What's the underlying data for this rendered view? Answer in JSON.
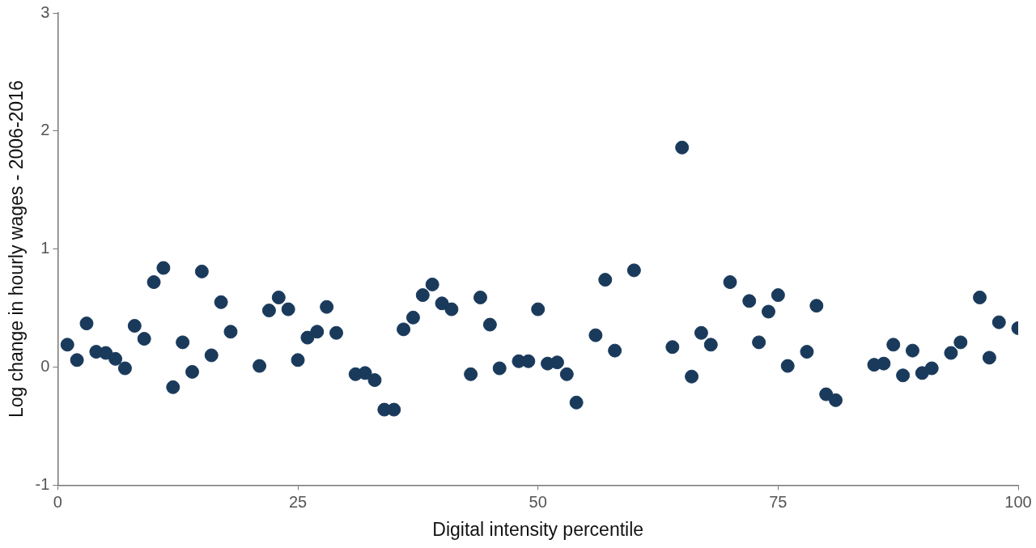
{
  "chart_data": {
    "type": "scatter",
    "xlabel": "Digital intensity percentile",
    "ylabel": "Log change in hourly wages - 2006-2016",
    "x": [
      1,
      2,
      3,
      4,
      5,
      6,
      7,
      8,
      9,
      10,
      11,
      12,
      13,
      14,
      15,
      16,
      17,
      18,
      21,
      22,
      23,
      24,
      25,
      26,
      27,
      28,
      29,
      31,
      32,
      33,
      34,
      35,
      36,
      37,
      38,
      39,
      40,
      41,
      43,
      44,
      45,
      46,
      48,
      49,
      50,
      51,
      52,
      53,
      54,
      56,
      57,
      58,
      60,
      64,
      65,
      66,
      67,
      68,
      70,
      72,
      73,
      74,
      75,
      76,
      78,
      79,
      80,
      81,
      85,
      86,
      87,
      88,
      89,
      90,
      91,
      93,
      94,
      96,
      97,
      98,
      100
    ],
    "series": [
      {
        "color": "#1a3a5c",
        "values": [
          0.19,
          0.06,
          0.37,
          0.13,
          0.12,
          0.07,
          -0.01,
          0.35,
          0.24,
          0.72,
          0.84,
          -0.17,
          0.21,
          -0.04,
          0.81,
          0.1,
          0.55,
          0.3,
          0.01,
          0.48,
          0.59,
          0.49,
          0.06,
          0.25,
          0.3,
          0.51,
          0.29,
          -0.06,
          -0.05,
          -0.11,
          -0.36,
          -0.36,
          0.32,
          0.42,
          0.61,
          0.7,
          0.54,
          0.49,
          -0.06,
          0.59,
          0.36,
          -0.01,
          0.05,
          0.05,
          0.49,
          0.03,
          0.04,
          -0.06,
          -0.3,
          0.27,
          0.74,
          0.14,
          0.82,
          0.17,
          1.86,
          -0.08,
          0.29,
          0.19,
          0.72,
          0.56,
          0.21,
          0.47,
          0.61,
          0.01,
          0.13,
          0.52,
          -0.23,
          -0.28,
          0.02,
          0.03,
          0.19,
          -0.07,
          0.14,
          -0.05,
          -0.01,
          0.12,
          0.21,
          0.59,
          0.08,
          0.38,
          0.33
        ]
      }
    ],
    "xlim": [
      0,
      100
    ],
    "xticks": [
      0,
      25,
      50,
      75,
      100
    ],
    "ylim": [
      -1,
      3
    ],
    "yticks": [
      -1,
      0,
      1,
      2,
      3
    ],
    "grid": false,
    "legend": false,
    "marker": "circle"
  }
}
